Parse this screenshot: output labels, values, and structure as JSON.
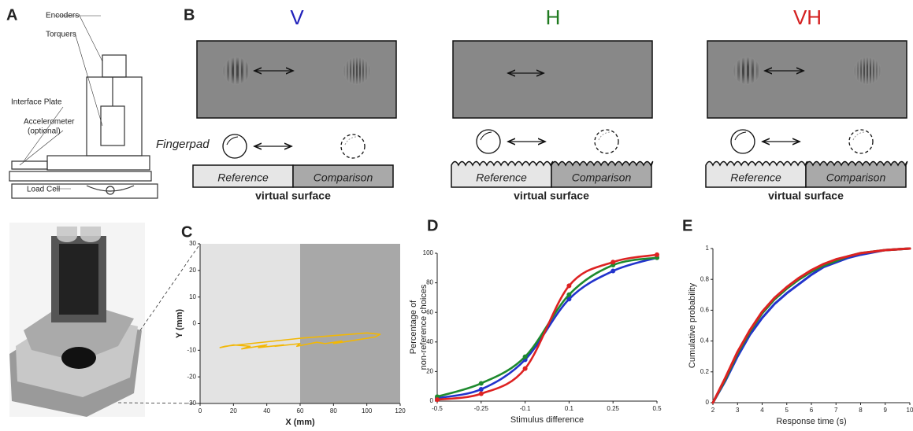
{
  "panel_labels": [
    "A",
    "B",
    "C",
    "D",
    "E"
  ],
  "panel_a": {
    "parts": [
      "Encoders",
      "Torquers",
      "Interface Plate",
      "Accelerometer",
      "(optional)",
      "Load Cell"
    ]
  },
  "panel_b": {
    "conditions": [
      {
        "name": "V",
        "color": "#2222bb"
      },
      {
        "name": "H",
        "color": "#1f7a1f"
      },
      {
        "name": "VH",
        "color": "#d42020"
      }
    ],
    "fingerpad": "Fingerpad",
    "reference": "Reference",
    "comparison": "Comparison",
    "surface": "virtual surface"
  },
  "chart_data": [
    {
      "type": "line",
      "xlabel": "X (mm)",
      "ylabel": "Y (mm)",
      "xlim": [
        0,
        120
      ],
      "xticks": [
        0,
        20,
        40,
        60,
        80,
        100,
        120
      ],
      "ylim": [
        -30,
        30
      ],
      "yticks": [
        -30,
        -20,
        -10,
        0,
        10,
        20,
        30
      ],
      "series": [
        {
          "color": "#f2b705",
          "x": [
            12,
            20,
            30,
            25,
            40,
            35,
            50,
            45,
            60,
            58,
            70,
            75,
            85,
            80,
            95,
            100,
            105,
            108,
            100,
            90,
            80,
            70,
            60,
            45,
            30,
            15,
            12
          ],
          "values": [
            -9,
            -8,
            -8.5,
            -9.5,
            -8,
            -9,
            -8,
            -8.5,
            -7.5,
            -8.5,
            -7,
            -7.5,
            -6.5,
            -7.5,
            -6,
            -5.5,
            -5,
            -4,
            -3.5,
            -4,
            -4.5,
            -5,
            -5.5,
            -6.5,
            -7.5,
            -8.5,
            -9
          ]
        }
      ]
    },
    {
      "type": "line",
      "xlabel": "Stimulus difference",
      "ylabel": [
        "Percentage of",
        "non-reference choices"
      ],
      "categories": [
        "-0.5",
        "-0.25",
        "-0.1",
        "0.1",
        "0.25",
        "0.5"
      ],
      "ylim": [
        0,
        100
      ],
      "yticks": [
        0,
        20,
        40,
        60,
        80,
        100
      ],
      "series": [
        {
          "color": "#2233cc",
          "values": [
            2,
            8,
            28,
            69,
            88,
            97
          ]
        },
        {
          "color": "#1e8a2e",
          "values": [
            3,
            12,
            30,
            72,
            92,
            97
          ]
        },
        {
          "color": "#dd2222",
          "values": [
            1,
            5,
            22,
            78,
            94,
            99
          ]
        }
      ]
    },
    {
      "type": "line",
      "xlabel": "Response time (s)",
      "ylabel": "Cumulative probability",
      "xlim": [
        2,
        10
      ],
      "xticks": [
        2,
        3,
        4,
        5,
        6,
        7,
        8,
        9,
        10
      ],
      "ylim": [
        0,
        1
      ],
      "yticks": [
        0,
        0.2,
        0.4,
        0.6,
        0.8,
        1
      ],
      "series": [
        {
          "color": "#2233cc",
          "x": [
            2,
            2.5,
            3,
            3.5,
            4,
            4.5,
            5,
            5.5,
            6,
            6.5,
            7,
            7.5,
            8,
            9,
            10
          ],
          "values": [
            0,
            0.14,
            0.3,
            0.44,
            0.55,
            0.64,
            0.71,
            0.77,
            0.83,
            0.88,
            0.91,
            0.94,
            0.96,
            0.99,
            1
          ]
        },
        {
          "color": "#1e8a2e",
          "x": [
            2,
            2.5,
            3,
            3.5,
            4,
            4.5,
            5,
            5.5,
            6,
            6.5,
            7,
            7.5,
            8,
            9,
            10
          ],
          "values": [
            0,
            0.15,
            0.32,
            0.46,
            0.58,
            0.67,
            0.74,
            0.8,
            0.85,
            0.89,
            0.92,
            0.95,
            0.97,
            0.99,
            1
          ]
        },
        {
          "color": "#dd2222",
          "x": [
            2,
            2.5,
            3,
            3.5,
            4,
            4.5,
            5,
            5.5,
            6,
            6.5,
            7,
            7.5,
            8,
            9,
            10
          ],
          "values": [
            0,
            0.16,
            0.33,
            0.47,
            0.59,
            0.68,
            0.75,
            0.81,
            0.86,
            0.9,
            0.93,
            0.95,
            0.97,
            0.99,
            1
          ]
        }
      ]
    }
  ]
}
